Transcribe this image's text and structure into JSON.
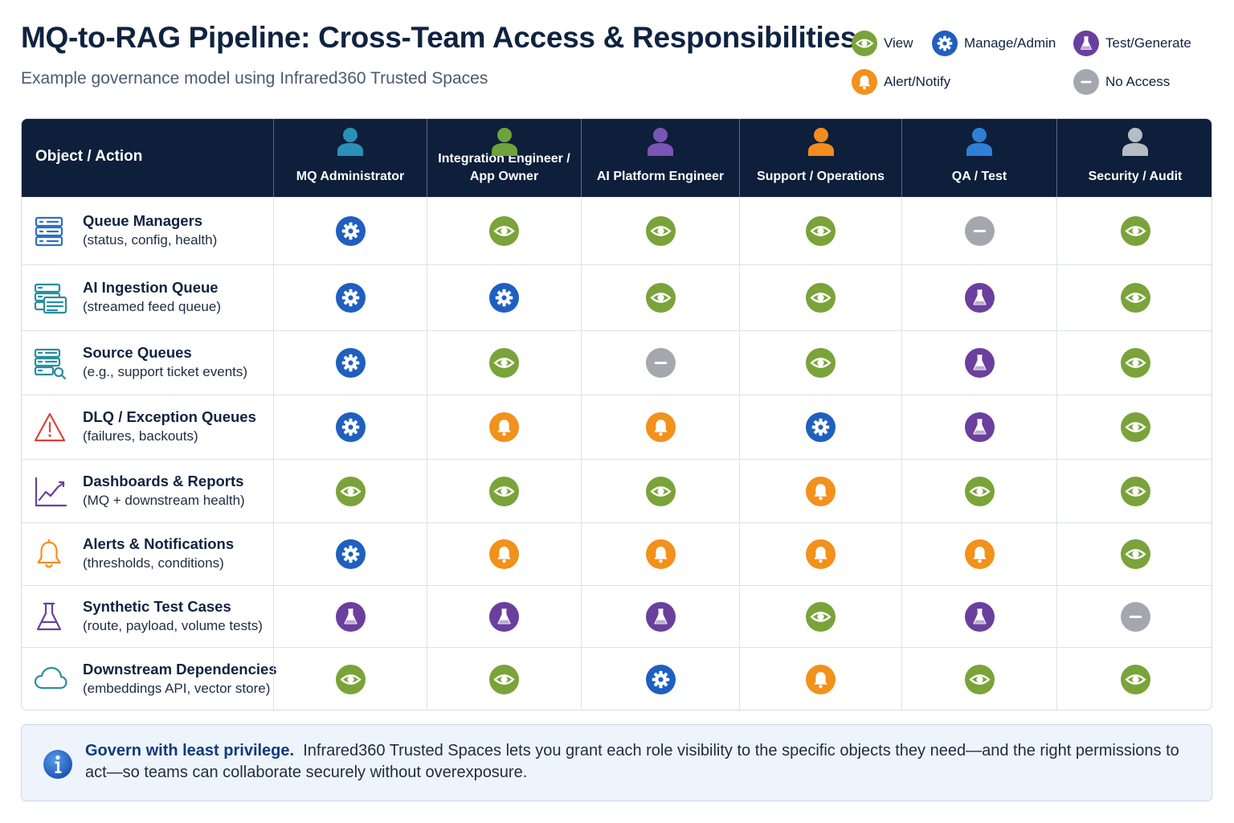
{
  "header": {
    "title": "MQ-to-RAG Pipeline: Cross-Team Access & Responsibilities",
    "subtitle": "Example governance model using Infrared360 Trusted Spaces"
  },
  "legend": [
    {
      "key": "view",
      "label": "View"
    },
    {
      "key": "manage",
      "label": "Manage/Admin"
    },
    {
      "key": "test",
      "label": "Test/Generate"
    },
    {
      "key": "alert",
      "label": "Alert/Notify"
    },
    {
      "key": "none",
      "label": "No Access"
    }
  ],
  "access_types": {
    "view": {
      "icon": "eye-icon",
      "color": "#7aa33a"
    },
    "manage": {
      "icon": "gear-icon",
      "color": "#1f5fbf"
    },
    "test": {
      "icon": "flask-icon",
      "color": "#6a3f9e"
    },
    "alert": {
      "icon": "bell-icon",
      "color": "#f2911b"
    },
    "none": {
      "icon": "minus-icon",
      "color": "#a4a8ae"
    }
  },
  "table": {
    "corner_label": "Object / Action",
    "roles": [
      {
        "label": "MQ Administrator",
        "icon": "person-icon",
        "color": "#2a90b8"
      },
      {
        "label": "Integration Engineer / App Owner",
        "icon": "person-icon",
        "color": "#6ea33a"
      },
      {
        "label": "AI Platform Engineer",
        "icon": "person-icon",
        "color": "#7a55b5"
      },
      {
        "label": "Support / Operations",
        "icon": "person-icon",
        "color": "#f28c1e"
      },
      {
        "label": "QA / Test",
        "icon": "person-icon",
        "color": "#2f7fd6"
      },
      {
        "label": "Security / Audit",
        "icon": "person-icon",
        "color": "#b6bcc4"
      }
    ],
    "rows": [
      {
        "title": "Queue Managers",
        "subtitle": "(status, config, health)",
        "icon": "server-stack-icon",
        "icon_color": "#2d6fc2",
        "access": [
          "manage",
          "view",
          "view",
          "view",
          "none",
          "view"
        ]
      },
      {
        "title": "AI Ingestion Queue",
        "subtitle": "(streamed feed queue)",
        "icon": "stacked-queues-icon",
        "icon_color": "#2a8e9e",
        "access": [
          "manage",
          "manage",
          "view",
          "view",
          "test",
          "view"
        ]
      },
      {
        "title": "Source Queues",
        "subtitle": "(e.g., support ticket events)",
        "icon": "queue-search-icon",
        "icon_color": "#2a8e9e",
        "access": [
          "manage",
          "view",
          "none",
          "view",
          "test",
          "view"
        ]
      },
      {
        "title": "DLQ / Exception Queues",
        "subtitle": "(failures, backouts)",
        "icon": "warning-triangle-icon",
        "icon_color": "#d8453a",
        "access": [
          "manage",
          "alert",
          "alert",
          "manage",
          "test",
          "view"
        ]
      },
      {
        "title": "Dashboards & Reports",
        "subtitle": "(MQ + downstream health)",
        "icon": "line-chart-icon",
        "icon_color": "#6a3f9e",
        "access": [
          "view",
          "view",
          "view",
          "alert",
          "view",
          "view"
        ]
      },
      {
        "title": "Alerts & Notifications",
        "subtitle": "(thresholds, conditions)",
        "icon": "bell-outline-icon",
        "icon_color": "#f2911b",
        "access": [
          "manage",
          "alert",
          "alert",
          "alert",
          "alert",
          "view"
        ]
      },
      {
        "title": "Synthetic Test Cases",
        "subtitle": "(route, payload, volume tests)",
        "icon": "flask-outline-icon",
        "icon_color": "#6a3f9e",
        "access": [
          "test",
          "test",
          "test",
          "view",
          "test",
          "none"
        ]
      },
      {
        "title": "Downstream Dependencies",
        "subtitle": "(embeddings API, vector store)",
        "icon": "cloud-icon",
        "icon_color": "#2a8e9e",
        "access": [
          "view",
          "view",
          "manage",
          "alert",
          "view",
          "view"
        ]
      }
    ]
  },
  "note": {
    "strong": "Govern with least privilege.",
    "text": "Infrared360 Trusted Spaces lets you grant each role visibility to the specific objects they need—and the right permissions to act—so teams can collaborate securely without overexposure."
  }
}
